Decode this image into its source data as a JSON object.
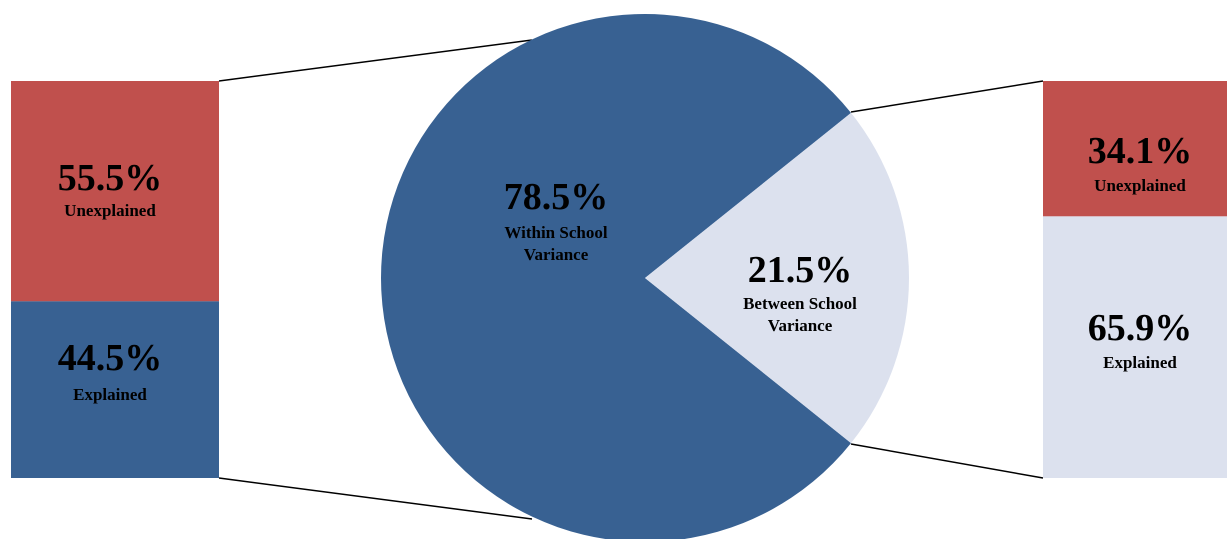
{
  "chart_data": {
    "type": "pie",
    "pie": {
      "slices": [
        {
          "label": [
            "Within School",
            "Variance"
          ],
          "percent_label": "78.5%",
          "value": 78.5,
          "color": "#386192"
        },
        {
          "label": [
            "Between School",
            "Variance"
          ],
          "percent_label": "21.5%",
          "value": 21.5,
          "color": "#dce1ee"
        }
      ]
    },
    "left_bar": {
      "segments": [
        {
          "label": "Unexplained",
          "percent_label": "55.5%",
          "value": 55.5,
          "color": "#c0504d"
        },
        {
          "label": "Explained",
          "percent_label": "44.5%",
          "value": 44.5,
          "color": "#386192"
        }
      ]
    },
    "right_bar": {
      "segments": [
        {
          "label": "Unexplained",
          "percent_label": "34.1%",
          "value": 34.1,
          "color": "#c0504d"
        },
        {
          "label": "Explained",
          "percent_label": "65.9%",
          "value": 65.9,
          "color": "#dce1ee"
        }
      ]
    }
  }
}
